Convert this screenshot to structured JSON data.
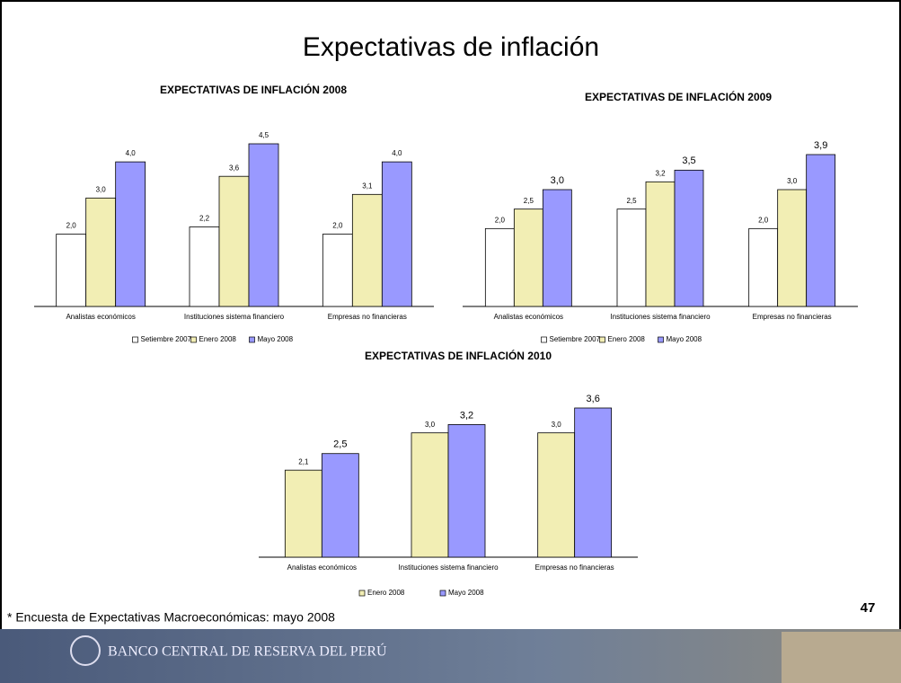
{
  "title": "Expectativas de inflación",
  "chart_data": [
    {
      "type": "bar",
      "title": "EXPECTATIVAS DE INFLACIÓN 2008",
      "categories": [
        "Analistas económicos",
        "Instituciones sistema financiero",
        "Empresas no financieras"
      ],
      "series": [
        {
          "name": "Setiembre 2007",
          "color": "#ffffff",
          "values": [
            2.0,
            2.2,
            2.0
          ],
          "value_labels": [
            "2,0",
            "2,2",
            "2,0"
          ]
        },
        {
          "name": "Enero 2008",
          "color": "#f2eeb4",
          "values": [
            3.0,
            3.6,
            3.1
          ],
          "value_labels": [
            "3,0",
            "3,6",
            "3,1"
          ]
        },
        {
          "name": "Mayo 2008",
          "color": "#9999ff",
          "values": [
            4.0,
            4.5,
            4.0
          ],
          "value_labels": [
            "4,0",
            "4,5",
            "4,0"
          ]
        }
      ]
    },
    {
      "type": "bar",
      "title": "EXPECTATIVAS DE INFLACIÓN 2009",
      "categories": [
        "Analistas económicos",
        "Instituciones sistema financiero",
        "Empresas no financieras"
      ],
      "series": [
        {
          "name": "Setiembre 2007",
          "color": "#ffffff",
          "values": [
            2.0,
            2.5,
            2.0
          ],
          "value_labels": [
            "2,0",
            "2,5",
            "2,0"
          ]
        },
        {
          "name": "Enero 2008",
          "color": "#f2eeb4",
          "values": [
            2.5,
            3.2,
            3.0
          ],
          "value_labels": [
            "2,5",
            "3,2",
            "3,0"
          ]
        },
        {
          "name": "Mayo 2008",
          "color": "#9999ff",
          "values": [
            3.0,
            3.5,
            3.9
          ],
          "value_labels": [
            "3,0",
            "3,5",
            "3,9"
          ]
        }
      ]
    },
    {
      "type": "bar",
      "title": "EXPECTATIVAS DE INFLACIÓN 2010",
      "categories": [
        "Analistas económicos",
        "Instituciones sistema financiero",
        "Empresas no financieras"
      ],
      "series": [
        {
          "name": "Enero 2008",
          "color": "#f2eeb4",
          "values": [
            2.1,
            3.0,
            3.0
          ],
          "value_labels": [
            "2,1",
            "3,0",
            "3,0"
          ]
        },
        {
          "name": "Mayo 2008",
          "color": "#9999ff",
          "values": [
            2.5,
            3.2,
            3.6
          ],
          "value_labels": [
            "2,5",
            "3,2",
            "3,6"
          ]
        }
      ]
    }
  ],
  "footnote": "* Encuesta de Expectativas Macroeconómicas: mayo 2008",
  "page_number": "47",
  "footer": "BANCO CENTRAL DE RESERVA DEL PERÚ"
}
